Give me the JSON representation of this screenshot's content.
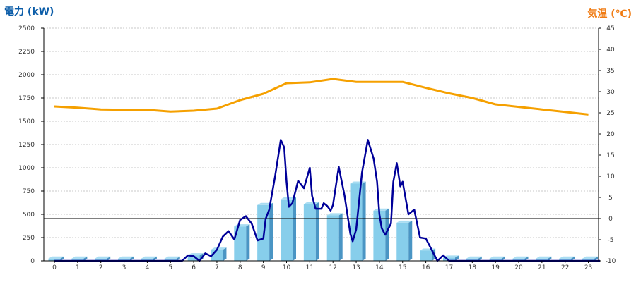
{
  "chart_data": {
    "type": "bar+line",
    "left_axis_title": "電力 (kW)",
    "right_axis_title": "気温 (℃)",
    "x_ticks": [
      "0",
      "1",
      "2",
      "3",
      "4",
      "5",
      "6",
      "7",
      "8",
      "9",
      "10",
      "11",
      "12",
      "13",
      "14",
      "15",
      "16",
      "17",
      "18",
      "19",
      "20",
      "21",
      "22",
      "23"
    ],
    "left_ticks": [
      "0",
      "250",
      "500",
      "750",
      "1000",
      "1250",
      "1500",
      "1750",
      "2000",
      "2250",
      "2500"
    ],
    "right_ticks": [
      "-10",
      "-5",
      "0",
      "5",
      "10",
      "15",
      "20",
      "25",
      "30",
      "35",
      "40",
      "45"
    ],
    "ylim_left": [
      0,
      2500
    ],
    "ylim_right": [
      -10,
      45
    ],
    "grid": true,
    "series": [
      {
        "name": "",
        "type": "bar",
        "axis": "left",
        "x": [
          0,
          1,
          2,
          3,
          4,
          5,
          6,
          7,
          8,
          9,
          10,
          11,
          12,
          13,
          14,
          15,
          16,
          17,
          18,
          19,
          20,
          21,
          22,
          23
        ],
        "values": [
          25,
          25,
          25,
          25,
          25,
          25,
          60,
          120,
          370,
          600,
          660,
          610,
          490,
          830,
          540,
          410,
          110,
          35,
          25,
          25,
          25,
          25,
          25,
          25
        ]
      },
      {
        "name": "",
        "type": "line",
        "axis": "left",
        "x": [
          0,
          4,
          5,
          5.5,
          5.75,
          6,
          6.25,
          6.5,
          6.75,
          7,
          7.25,
          7.5,
          7.75,
          8,
          8.25,
          8.5,
          8.75,
          9,
          9.1,
          9.25,
          9.5,
          9.75,
          9.9,
          10,
          10.1,
          10.25,
          10.5,
          10.75,
          11,
          11.1,
          11.25,
          11.5,
          11.6,
          11.75,
          11.9,
          12,
          12.25,
          12.5,
          12.75,
          12.85,
          13,
          13.25,
          13.5,
          13.75,
          13.9,
          14,
          14.1,
          14.25,
          14.5,
          14.6,
          14.75,
          14.9,
          15,
          15.25,
          15.5,
          15.75,
          16,
          16.25,
          16.5,
          16.75,
          17,
          23.5
        ],
        "values": [
          0,
          0,
          0,
          0,
          60,
          50,
          0,
          80,
          50,
          120,
          260,
          320,
          230,
          440,
          480,
          400,
          220,
          240,
          450,
          550,
          900,
          1300,
          1220,
          850,
          580,
          620,
          860,
          780,
          1000,
          700,
          560,
          560,
          620,
          590,
          540,
          600,
          1010,
          700,
          290,
          210,
          340,
          950,
          1300,
          1100,
          850,
          500,
          350,
          280,
          400,
          850,
          1050,
          800,
          850,
          500,
          550,
          250,
          240,
          120,
          0,
          60,
          0,
          0
        ]
      },
      {
        "name": "",
        "type": "line",
        "axis": "right",
        "x": [
          0,
          1,
          2,
          3,
          4,
          5,
          6,
          7,
          8,
          9,
          10,
          11,
          12,
          13,
          14,
          15,
          16,
          17,
          18,
          19,
          20,
          21,
          22,
          23
        ],
        "values": [
          26.5,
          26.2,
          25.8,
          25.7,
          25.7,
          25.3,
          25.5,
          26.0,
          28.0,
          29.5,
          32.0,
          32.2,
          33.0,
          32.3,
          32.3,
          32.3,
          30.9,
          29.6,
          28.5,
          27.0,
          26.4,
          25.8,
          25.2,
          24.6
        ]
      }
    ],
    "colors": {
      "bar_face": "#87ceeb",
      "bar_side": "#4a95c4",
      "power_line": "#000099",
      "temperature_line": "#f5a000",
      "zero_line": "#000000",
      "grid": "#c8c8c8",
      "left_title": "#0a5ca8",
      "right_title": "#f07c14"
    }
  }
}
